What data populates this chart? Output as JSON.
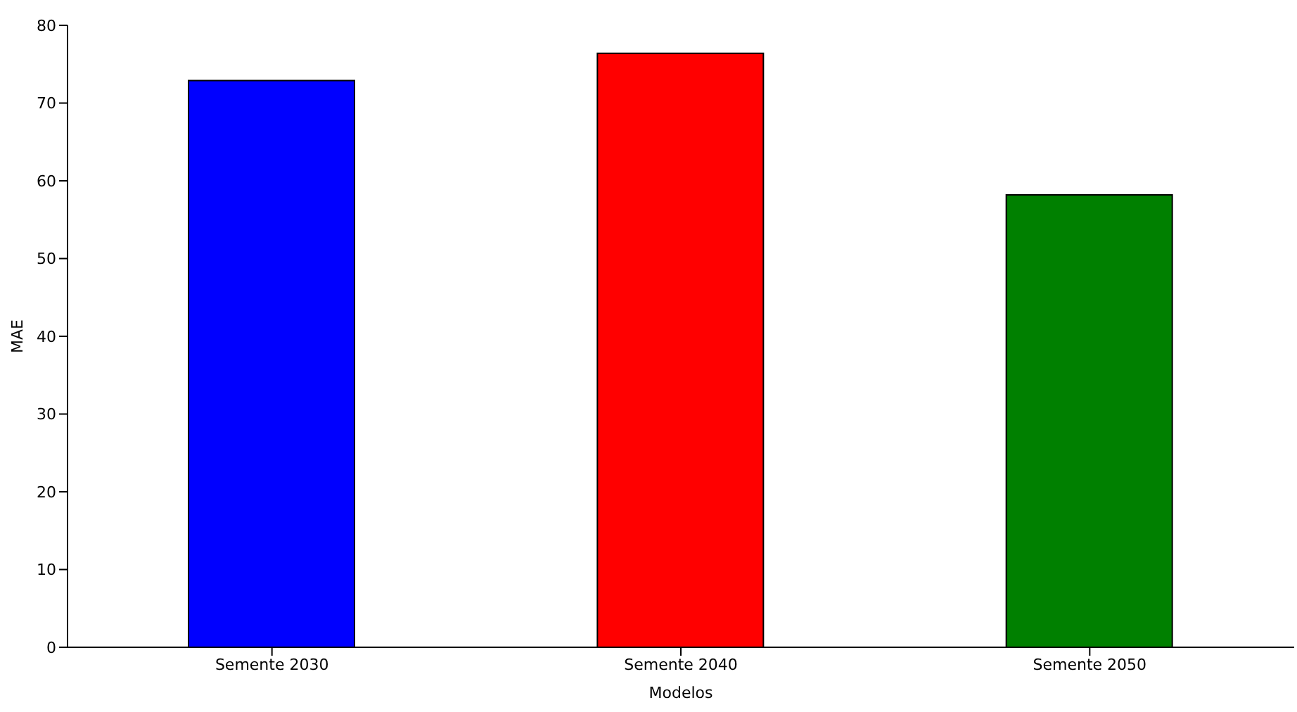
{
  "chart_data": {
    "type": "bar",
    "xlabel": "Modelos",
    "ylabel": "MAE",
    "categories": [
      "Semente 2030",
      "Semente 2040",
      "Semente 2050"
    ],
    "values": [
      72.9,
      76.4,
      58.2
    ],
    "colors": [
      "#0000ff",
      "#ff0000",
      "#008000"
    ],
    "ylim": [
      0,
      80
    ],
    "yticks": [
      0,
      10,
      20,
      30,
      40,
      50,
      60,
      70,
      80
    ],
    "grid": false
  }
}
